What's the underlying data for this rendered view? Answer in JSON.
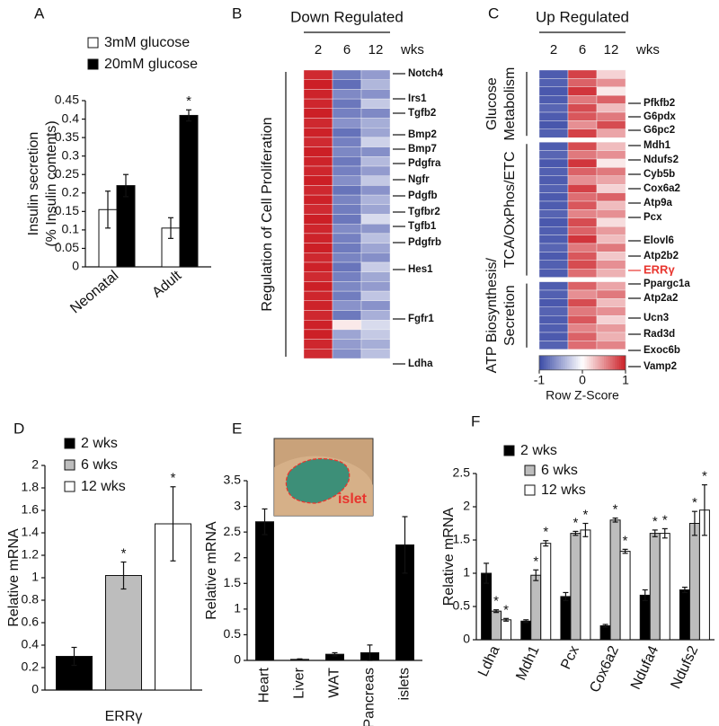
{
  "chart_data": [
    {
      "panel": "A",
      "type": "bar",
      "ylabel": [
        "Insulin secretion",
        "(% Insulin contents)"
      ],
      "categories": [
        "Neonatal",
        "Adult"
      ],
      "series": [
        {
          "name": "3mM glucose",
          "color": "#ffffff",
          "values": [
            0.155,
            0.105
          ],
          "errors": [
            0.05,
            0.028
          ]
        },
        {
          "name": "20mM glucose",
          "color": "#000000",
          "values": [
            0.22,
            0.41
          ],
          "errors": [
            0.03,
            0.015
          ],
          "annotations": [
            null,
            "*"
          ]
        }
      ],
      "ylim": [
        0,
        0.45
      ],
      "yticks": [
        0,
        0.05,
        0.1,
        0.15,
        0.2,
        0.25,
        0.3,
        0.35,
        0.4,
        0.45
      ]
    },
    {
      "panel": "B",
      "type": "heatmap",
      "title": "Down Regulated",
      "columns": [
        "2",
        "6",
        "12"
      ],
      "column_unit": "wks",
      "clim": [
        -1,
        1
      ],
      "colors": {
        "low": "#3a4aa6",
        "mid": "#ffffff",
        "high": "#cc1f26"
      },
      "sections": [
        {
          "label": [
            "Regulation of Cell Proliferation"
          ],
          "rows": [
            [
              0.95,
              -0.72,
              -0.55
            ],
            [
              1,
              -0.8,
              -0.4
            ],
            [
              0.98,
              -0.65,
              -0.6
            ],
            [
              0.97,
              -0.75,
              -0.3
            ],
            [
              1,
              -0.7,
              -0.65
            ],
            [
              0.96,
              -0.6,
              -0.45
            ],
            [
              0.99,
              -0.78,
              -0.5
            ],
            [
              0.95,
              -0.7,
              -0.25
            ],
            [
              1,
              -0.66,
              -0.62
            ],
            [
              0.98,
              -0.74,
              -0.38
            ],
            [
              0.97,
              -0.7,
              -0.55
            ],
            [
              1,
              -0.62,
              -0.3
            ],
            [
              0.96,
              -0.77,
              -0.6
            ],
            [
              0.99,
              -0.68,
              -0.42
            ],
            [
              0.95,
              -0.72,
              -0.5
            ],
            [
              1,
              -0.75,
              -0.2
            ],
            [
              0.97,
              -0.64,
              -0.58
            ],
            [
              0.98,
              -0.7,
              -0.35
            ],
            [
              1,
              -0.73,
              -0.5
            ],
            [
              0.96,
              -0.68,
              -0.62
            ],
            [
              0.99,
              -0.76,
              -0.28
            ],
            [
              0.95,
              -0.7,
              -0.48
            ],
            [
              1,
              -0.66,
              -0.55
            ],
            [
              0.97,
              -0.72,
              -0.32
            ],
            [
              0.98,
              -0.6,
              -0.6
            ],
            [
              0.96,
              -0.74,
              -0.44
            ],
            [
              0.99,
              0.1,
              -0.2
            ],
            [
              1,
              -0.5,
              -0.3
            ],
            [
              0.97,
              -0.55,
              -0.45
            ],
            [
              0.95,
              -0.62,
              -0.35
            ]
          ]
        }
      ],
      "row_labels": [
        "Notch4",
        "Irs1",
        "Tgfb2",
        "Bmp2",
        "Bmp7",
        "Pdgfra",
        "Ngfr",
        "Pdgfb",
        "Tgfbr2",
        "Tgfb1",
        "Pdgfrb",
        "Hes1",
        "Fgfr1",
        "Ldha"
      ]
    },
    {
      "panel": "C",
      "type": "heatmap",
      "title": "Up Regulated",
      "columns": [
        "2",
        "6",
        "12"
      ],
      "column_unit": "wks",
      "clim": [
        -1,
        1
      ],
      "colors": {
        "low": "#3a4aa6",
        "mid": "#ffffff",
        "high": "#cc1f26"
      },
      "colorbar_label": "Row Z-Score",
      "colorbar_ticks": [
        -1,
        0,
        1
      ],
      "sections": [
        {
          "label": [
            "Glucose",
            "Metabolism"
          ],
          "rows": [
            [
              -0.9,
              0.85,
              0.2
            ],
            [
              -0.88,
              0.7,
              0.5
            ],
            [
              -0.92,
              0.9,
              0.1
            ],
            [
              -0.9,
              0.6,
              0.7
            ],
            [
              -0.85,
              0.8,
              0.3
            ],
            [
              -0.9,
              0.75,
              0.6
            ],
            [
              -0.93,
              0.5,
              0.8
            ],
            [
              -0.88,
              0.85,
              0.4
            ]
          ]
        },
        {
          "label": [
            "TCA/OxPhos/ETC"
          ],
          "rows": [
            [
              -0.9,
              0.8,
              0.3
            ],
            [
              -0.85,
              0.6,
              0.5
            ],
            [
              -0.92,
              0.9,
              0.1
            ],
            [
              -0.88,
              0.7,
              0.6
            ],
            [
              -0.9,
              0.5,
              0.4
            ],
            [
              -0.87,
              0.85,
              0.2
            ],
            [
              -0.91,
              0.65,
              0.7
            ],
            [
              -0.9,
              0.75,
              0.3
            ],
            [
              -0.86,
              0.55,
              0.5
            ],
            [
              -0.92,
              0.8,
              0.15
            ],
            [
              -0.89,
              0.7,
              0.45
            ],
            [
              -0.9,
              0.9,
              0.3
            ],
            [
              -0.85,
              0.6,
              0.6
            ],
            [
              -0.91,
              0.75,
              0.25
            ],
            [
              -0.88,
              0.8,
              0.5
            ],
            [
              -0.9,
              0.65,
              0.35
            ]
          ]
        },
        {
          "label": [
            "ATP Biosynthesis/",
            "Secretion"
          ],
          "rows": [
            [
              -0.9,
              0.7,
              0.4
            ],
            [
              -0.88,
              0.5,
              0.6
            ],
            [
              -0.92,
              0.8,
              0.3
            ],
            [
              -0.86,
              0.6,
              0.5
            ],
            [
              -0.9,
              0.75,
              0.2
            ],
            [
              -0.89,
              0.55,
              0.45
            ],
            [
              -0.91,
              0.7,
              0.35
            ],
            [
              -0.87,
              0.65,
              0.55
            ]
          ]
        }
      ],
      "row_labels": [
        "Pfkfb2",
        "G6pdx",
        "G6pc2",
        "Mdh1",
        "Ndufs2",
        "Cyb5b",
        "Cox6a2",
        "Atp9a",
        "Pcx",
        "Elovl6",
        "Atp2b2",
        "ERRγ",
        "Ppargc1a",
        "Atp2a2",
        "Ucn3",
        "Rad3d",
        "Exoc6b",
        "Vamp2"
      ]
    },
    {
      "panel": "D",
      "type": "bar",
      "ylabel": "Relative mRNA",
      "categories": [
        "ERRγ"
      ],
      "series": [
        {
          "name": "2 wks",
          "color": "#000000",
          "values": [
            0.3
          ],
          "errors": [
            0.08
          ]
        },
        {
          "name": "6 wks",
          "color": "#bdbdbd",
          "values": [
            1.02
          ],
          "errors": [
            0.12
          ],
          "annotations": [
            "*"
          ]
        },
        {
          "name": "12 wks",
          "color": "#ffffff",
          "values": [
            1.48
          ],
          "errors": [
            0.33
          ],
          "annotations": [
            "*"
          ]
        }
      ],
      "ylim": [
        0,
        2
      ],
      "yticks": [
        0,
        0.2,
        0.4,
        0.6,
        0.8,
        1,
        1.2,
        1.4,
        1.6,
        1.8,
        2
      ]
    },
    {
      "panel": "E",
      "type": "bar",
      "ylabel": "Relative mRNA",
      "inset_label": "islet",
      "categories": [
        "Heart",
        "Liver",
        "WAT",
        "Pancreas",
        "islets"
      ],
      "values": [
        2.7,
        0.02,
        0.12,
        0.15,
        2.25
      ],
      "errors": [
        0.25,
        0.01,
        0.03,
        0.15,
        0.55
      ],
      "color": "#000000",
      "ylim": [
        0,
        3.5
      ],
      "yticks": [
        0,
        0.5,
        1,
        1.5,
        2,
        2.5,
        3,
        3.5
      ]
    },
    {
      "panel": "F",
      "type": "bar",
      "ylabel": "Relative mRNA",
      "categories": [
        "Ldha",
        "Mdh1",
        "Pcx",
        "Cox6a2",
        "Ndufa4",
        "Ndufs2"
      ],
      "series": [
        {
          "name": "2 wks",
          "color": "#000000",
          "values": [
            1.0,
            0.28,
            0.65,
            0.21,
            0.67,
            0.75
          ],
          "errors": [
            0.15,
            0.02,
            0.06,
            0.02,
            0.08,
            0.04
          ]
        },
        {
          "name": "6 wks",
          "color": "#bdbdbd",
          "values": [
            0.43,
            0.97,
            1.6,
            1.8,
            1.6,
            1.75
          ],
          "errors": [
            0.02,
            0.08,
            0.03,
            0.03,
            0.05,
            0.18
          ],
          "annotations": [
            "*",
            "*",
            "*",
            "*",
            "*",
            "*"
          ]
        },
        {
          "name": "12 wks",
          "color": "#ffffff",
          "values": [
            0.3,
            1.45,
            1.65,
            1.33,
            1.6,
            1.95
          ],
          "errors": [
            0.02,
            0.04,
            0.1,
            0.03,
            0.07,
            0.38
          ],
          "annotations": [
            "*",
            "*",
            "*",
            "*",
            "*",
            "*"
          ]
        }
      ],
      "ylim": [
        0,
        2.5
      ],
      "yticks": [
        0,
        0.5,
        1,
        1.5,
        2,
        2.5
      ]
    }
  ]
}
